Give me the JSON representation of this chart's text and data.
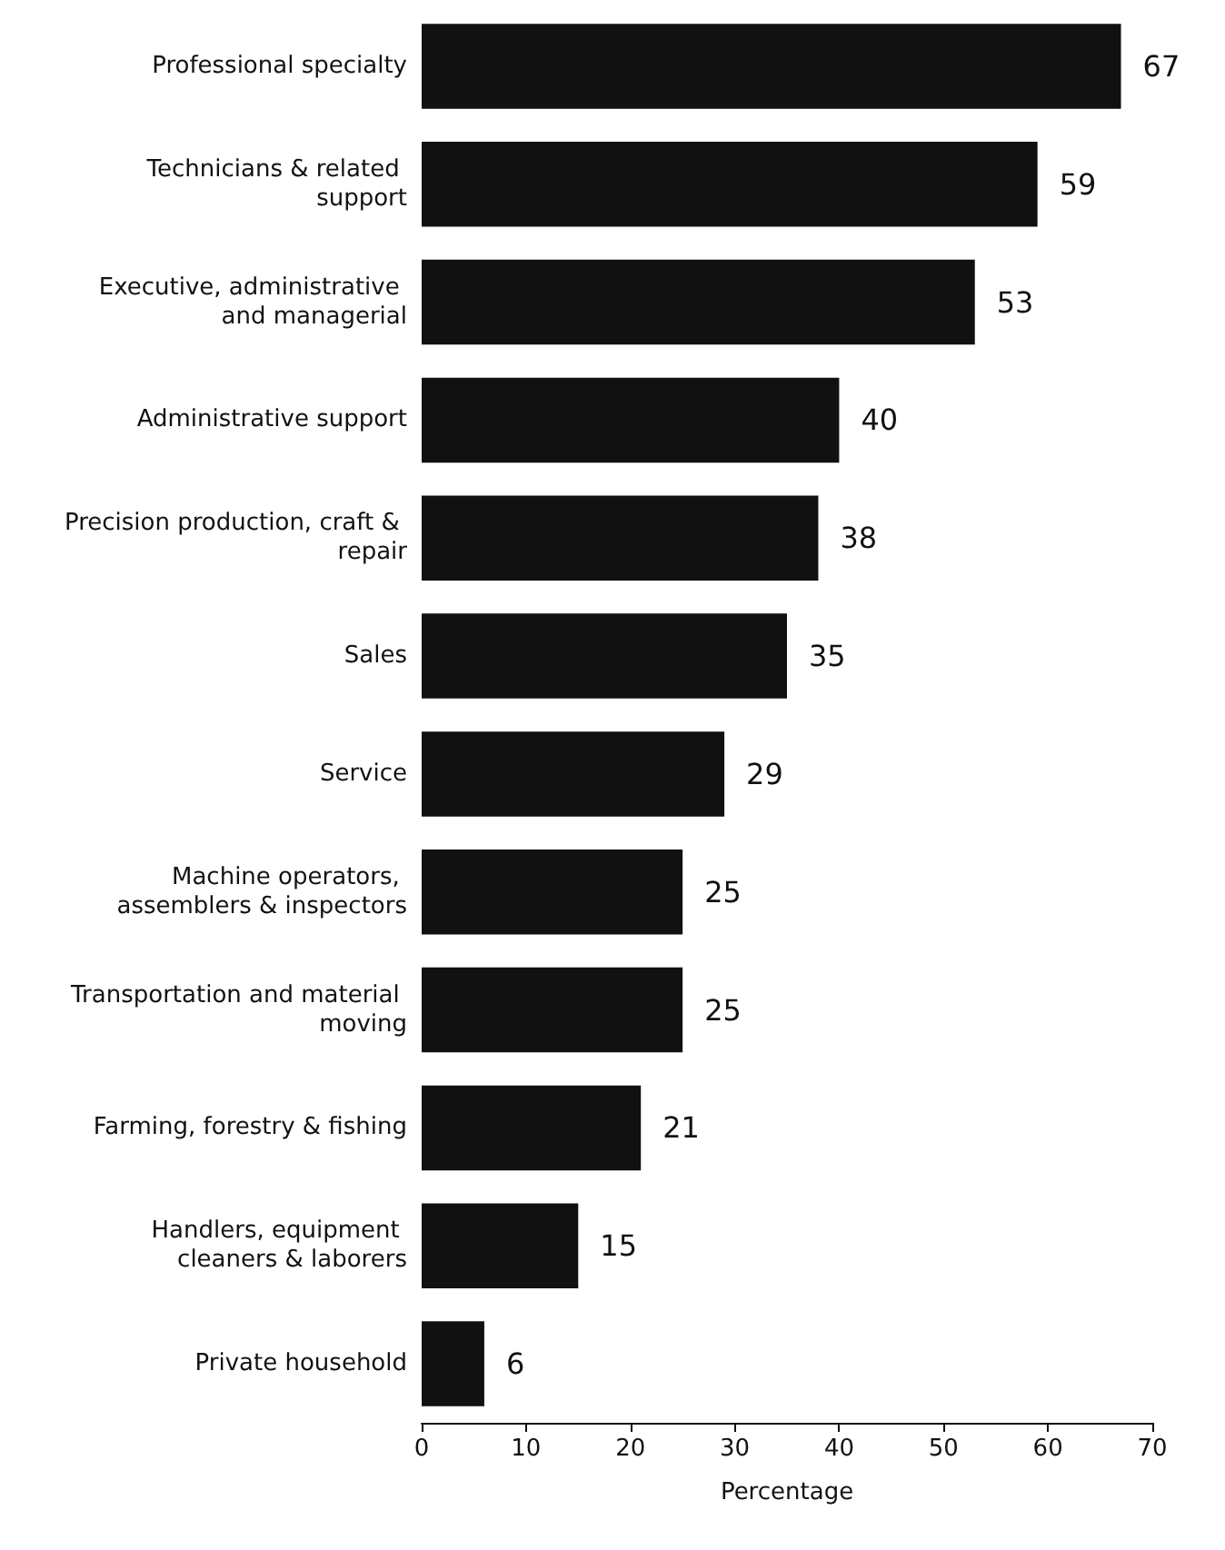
{
  "chart_data": {
    "type": "bar",
    "orientation": "horizontal",
    "xlabel": "Percentage",
    "categories": [
      "Professional specialty",
      "Technicians & related support",
      "Executive, administrative and managerial",
      "Administrative support",
      "Precision production, craft & repair",
      "Sales",
      "Service",
      "Machine operators, assemblers & inspectors",
      "Transportation and material moving",
      "Farming, forestry & fishing",
      "Handlers, equipment cleaners & laborers",
      "Private household"
    ],
    "values": [
      67,
      59,
      53,
      40,
      38,
      35,
      29,
      25,
      25,
      21,
      15,
      6
    ],
    "color": "#111111",
    "data_labels": true,
    "xlim": [
      0,
      70
    ],
    "xticks": [
      0,
      10,
      20,
      30,
      40,
      50,
      60,
      70
    ],
    "grid": false
  }
}
